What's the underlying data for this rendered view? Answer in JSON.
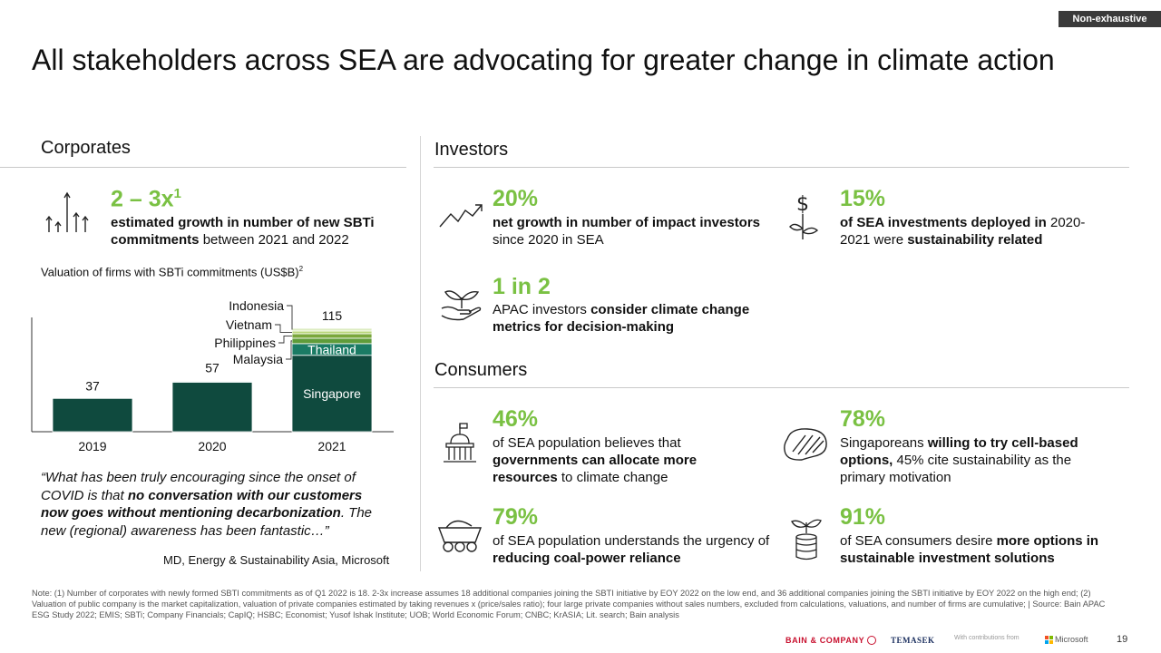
{
  "tag": "Non-exhaustive",
  "title": "All stakeholders across SEA are advocating for greater change in climate action",
  "corporates": {
    "heading": "Corporates",
    "stat_value": "2 – 3x",
    "stat_sup": "1",
    "stat_desc": [
      "estimated growth in number of new SBTi commitments",
      " between 2021 and 2022"
    ],
    "quote": [
      "“What has been truly encouraging since the onset of COVID is that ",
      "no conversation with our customers now goes without mentioning decarbonization",
      ". The new (regional) awareness has been fantastic…”"
    ],
    "attribution": "MD, Energy & Sustainability Asia, Microsoft",
    "icon": "growth-arrows-icon"
  },
  "chart_data": {
    "type": "bar",
    "title": "Valuation of firms with SBTi commitments (US$B)",
    "title_sup": "2",
    "categories": [
      "2019",
      "2020",
      "2021"
    ],
    "totals": [
      37,
      57,
      115
    ],
    "series": [
      {
        "name": "Singapore",
        "values": [
          37,
          55,
          85
        ],
        "color": "#0f4a3e"
      },
      {
        "name": "Thailand",
        "values": [
          0,
          1,
          13
        ],
        "color": "#1a7b64"
      },
      {
        "name": "Malaysia",
        "values": [
          0,
          0.5,
          6
        ],
        "color": "#5f9c3a"
      },
      {
        "name": "Philippines",
        "values": [
          0,
          0.3,
          5
        ],
        "color": "#7aa73c"
      },
      {
        "name": "Vietnam",
        "values": [
          0,
          0.1,
          3
        ],
        "color": "#b8d67a"
      },
      {
        "name": "Indonesia",
        "values": [
          0,
          0.1,
          3
        ],
        "color": "#dcebc0"
      }
    ],
    "ylim": [
      0,
      115
    ],
    "legend": "inline-left-of-2021"
  },
  "investors": {
    "heading": "Investors",
    "stats": [
      {
        "value": "20%",
        "desc": [
          "net growth in number of impact investors",
          " since 2020 in SEA"
        ],
        "icon": "trend-line-icon"
      },
      {
        "value": "15%",
        "desc": [
          "of SEA investments deployed in",
          " 2020-2021 were ",
          "sustainability related"
        ],
        "icon": "money-plant-icon"
      },
      {
        "value": "1 in 2",
        "desc": [
          "APAC investors ",
          "consider climate change metrics for decision-making"
        ],
        "icon": "hand-sprout-icon"
      }
    ]
  },
  "consumers": {
    "heading": "Consumers",
    "stats": [
      {
        "value": "46%",
        "desc": [
          "of SEA population believes that ",
          "governments can allocate more resources",
          " to climate change"
        ],
        "icon": "government-building-icon"
      },
      {
        "value": "78%",
        "desc": [
          "Singaporeans ",
          "willing to try cell-based options,",
          " 45% cite sustainability as the primary motivation"
        ],
        "icon": "steak-icon"
      },
      {
        "value": "79%",
        "desc": [
          "of SEA population understands the urgency of ",
          "reducing coal-power reliance"
        ],
        "icon": "coal-cart-icon"
      },
      {
        "value": "91%",
        "desc": [
          "of SEA consumers desire ",
          "more options in sustainable investment solutions"
        ],
        "icon": "coin-sprout-icon"
      }
    ]
  },
  "note": "Note: (1) Number of corporates with newly formed SBTI commitments as of Q1 2022 is 18. 2-3x increase assumes 18 additional companies joining the SBTI initiative by EOY 2022 on the low end, and 36 additional companies joining the SBTI initiative by EOY 2022 on the high end; (2) Valuation of public company is the market capitalization, valuation of private companies estimated by taking revenues x (price/sales ratio); four large private companies without sales numbers, excluded from calculations, valuations, and number of firms are cumulative; | Source: Bain APAC ESG Study 2022; EMIS; SBTi; Company Financials; CapIQ; HSBC; Economist; Yusof Ishak Institute; UOB; World Economic Forum; CNBC; KrASIA; Lit. search; Bain analysis",
  "footer": {
    "bain": "BAIN & COMPANY",
    "temasek": "TEMASEK",
    "contrib": "With contributions from",
    "microsoft": "Microsoft",
    "page": "19"
  },
  "colors": {
    "accent_green": "#7ac143",
    "dark_green": "#0f4a3e"
  }
}
